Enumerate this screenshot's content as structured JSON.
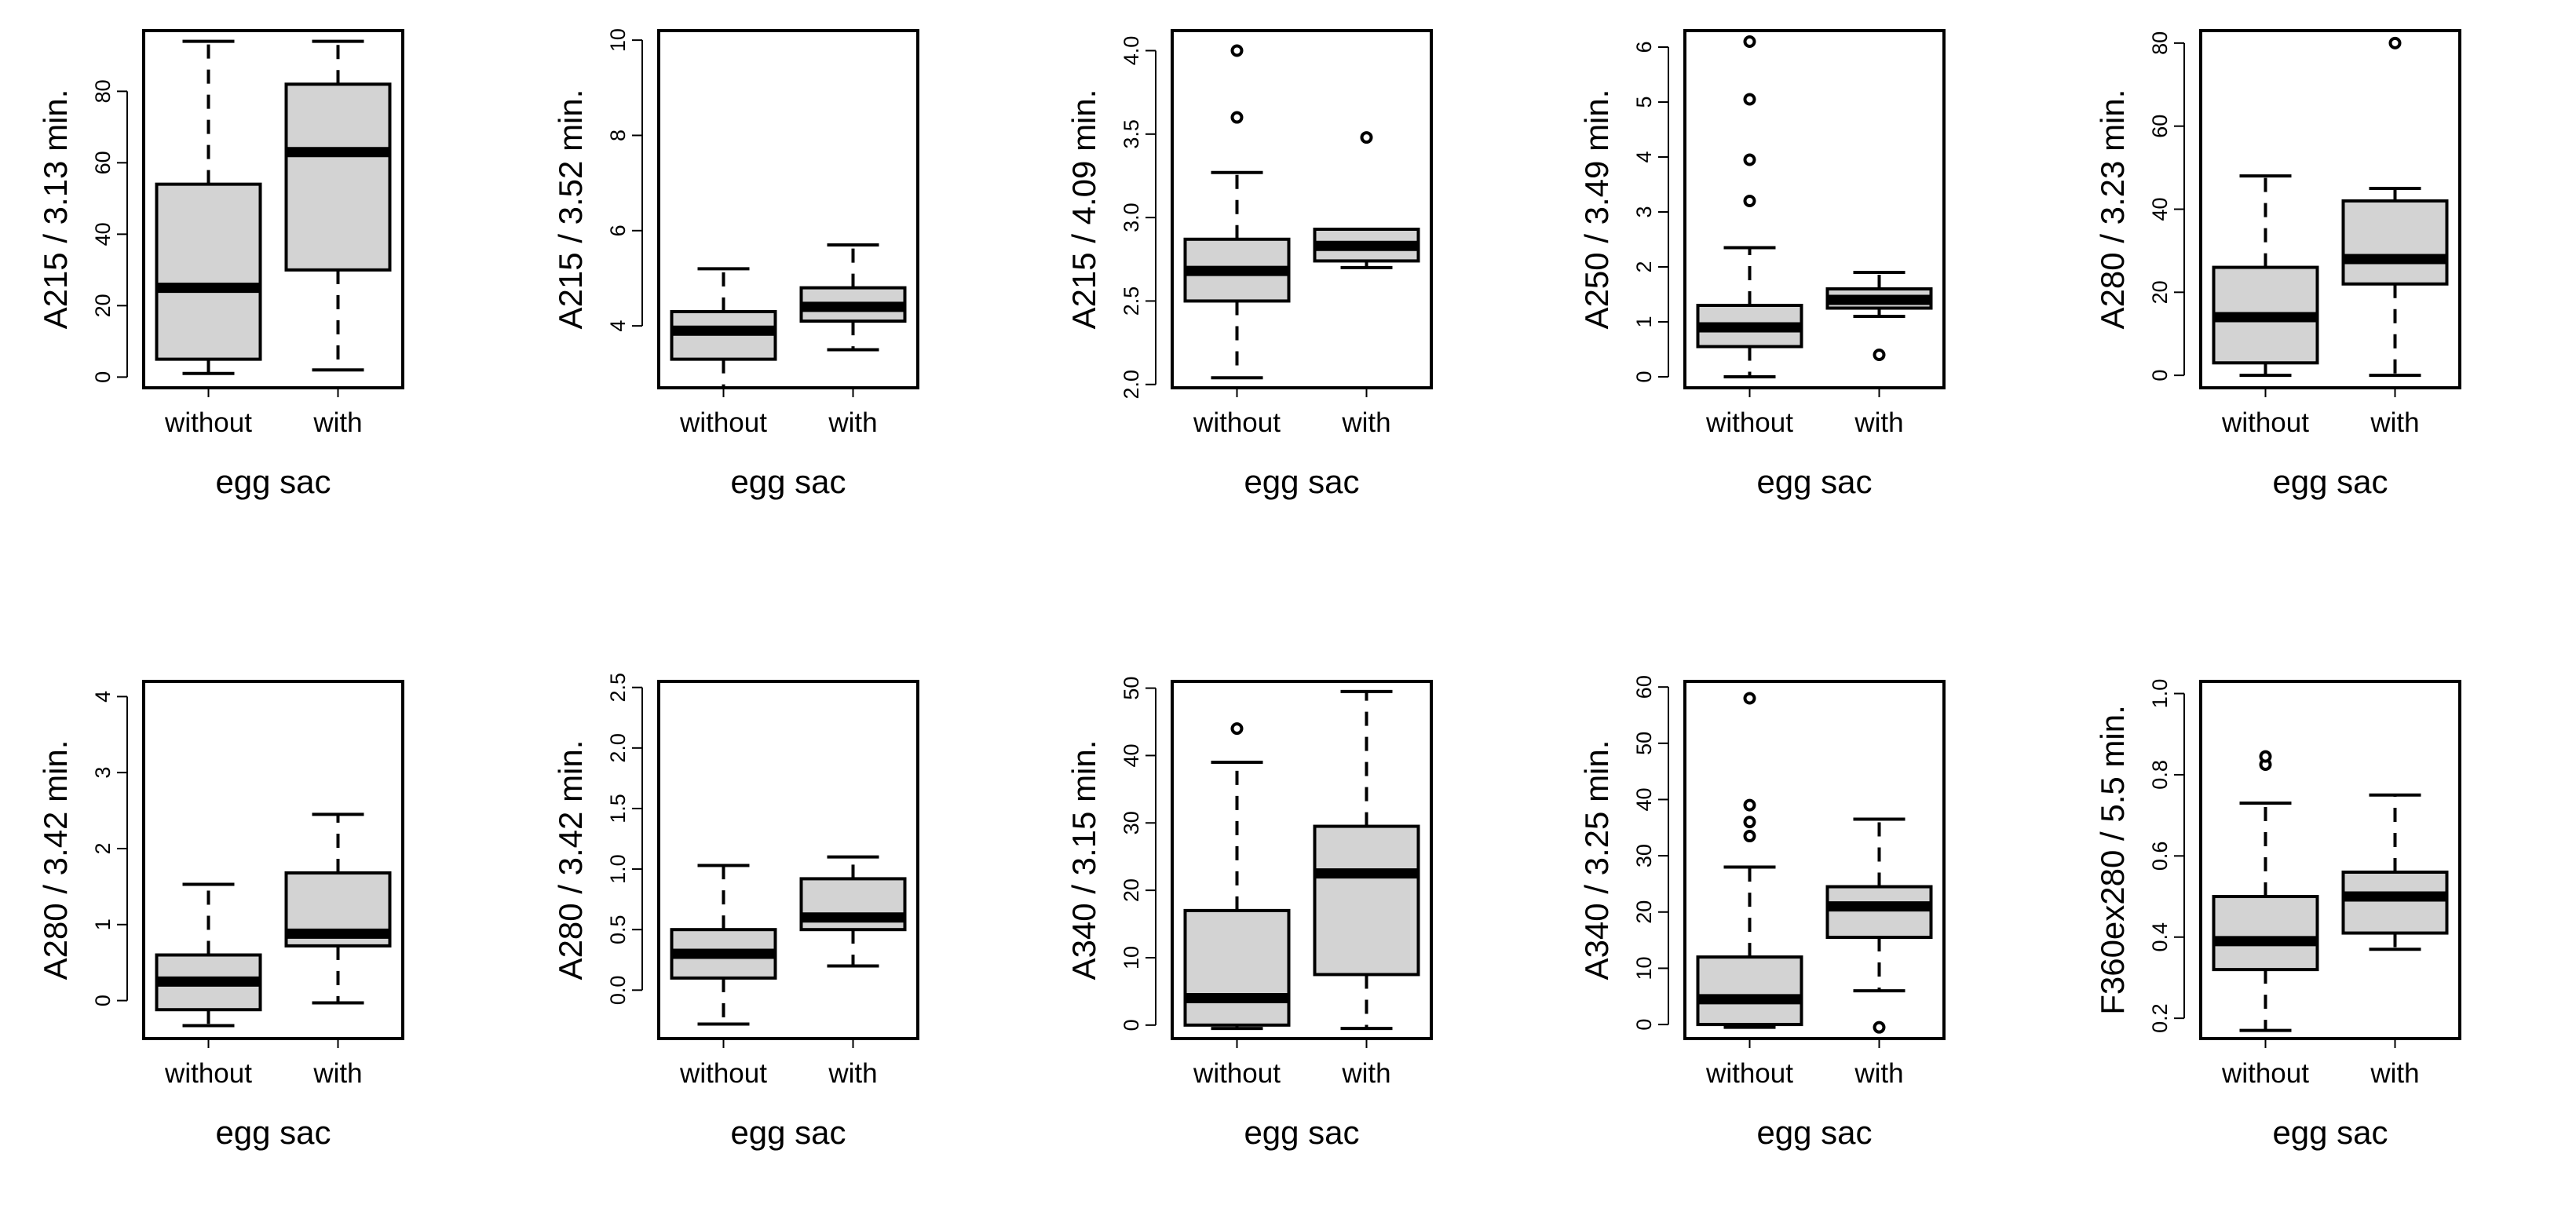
{
  "chart_data": [
    {
      "type": "box",
      "ylabel": "A215 / 3.13 min.",
      "xlabel": "egg sac",
      "categories": [
        "without",
        "with"
      ],
      "ylim": [
        -3,
        97
      ],
      "yticks": [
        0,
        20,
        40,
        60,
        80
      ],
      "boxes": [
        {
          "whisker_low": 1,
          "q1": 5,
          "median": 25,
          "q3": 54,
          "whisker_high": 94,
          "outliers": []
        },
        {
          "whisker_low": 2,
          "q1": 30,
          "median": 63,
          "q3": 82,
          "whisker_high": 94,
          "outliers": []
        }
      ]
    },
    {
      "type": "box",
      "ylabel": "A215 / 3.52 min.",
      "xlabel": "egg sac",
      "categories": [
        "without",
        "with"
      ],
      "ylim": [
        2.7,
        10.2
      ],
      "yticks": [
        4,
        6,
        8,
        10
      ],
      "boxes": [
        {
          "whisker_low": 2.7,
          "q1": 3.3,
          "median": 3.9,
          "q3": 4.3,
          "whisker_high": 5.2,
          "outliers": []
        },
        {
          "whisker_low": 3.5,
          "q1": 4.1,
          "median": 4.4,
          "q3": 4.8,
          "whisker_high": 5.7,
          "outliers": []
        }
      ]
    },
    {
      "type": "box",
      "ylabel": "A215 / 4.09 min.",
      "xlabel": "egg sac",
      "categories": [
        "without",
        "with"
      ],
      "ylim": [
        1.98,
        4.12
      ],
      "yticks": [
        2.0,
        2.5,
        3.0,
        3.5,
        4.0
      ],
      "ytick_labels": [
        "2.0",
        "2.5",
        "3.0",
        "3.5",
        "4.0"
      ],
      "boxes": [
        {
          "whisker_low": 2.04,
          "q1": 2.5,
          "median": 2.68,
          "q3": 2.87,
          "whisker_high": 3.27,
          "outliers": [
            3.6,
            4.0
          ]
        },
        {
          "whisker_low": 2.7,
          "q1": 2.74,
          "median": 2.83,
          "q3": 2.93,
          "whisker_high": 2.93,
          "outliers": [
            3.48
          ]
        }
      ]
    },
    {
      "type": "box",
      "ylabel": "A250 / 3.49 min.",
      "xlabel": "egg sac",
      "categories": [
        "without",
        "with"
      ],
      "ylim": [
        -0.2,
        6.3
      ],
      "yticks": [
        0,
        1,
        2,
        3,
        4,
        5,
        6
      ],
      "boxes": [
        {
          "whisker_low": 0.0,
          "q1": 0.55,
          "median": 0.9,
          "q3": 1.3,
          "whisker_high": 2.35,
          "outliers": [
            3.2,
            3.95,
            5.05,
            6.1
          ]
        },
        {
          "whisker_low": 1.1,
          "q1": 1.25,
          "median": 1.4,
          "q3": 1.6,
          "whisker_high": 1.9,
          "outliers": [
            0.4
          ]
        }
      ]
    },
    {
      "type": "box",
      "ylabel": "A280 / 3.23 min.",
      "xlabel": "egg sac",
      "categories": [
        "without",
        "with"
      ],
      "ylim": [
        -3,
        83
      ],
      "yticks": [
        0,
        20,
        40,
        60,
        80
      ],
      "boxes": [
        {
          "whisker_low": 0,
          "q1": 3,
          "median": 14,
          "q3": 26,
          "whisker_high": 48,
          "outliers": []
        },
        {
          "whisker_low": 0,
          "q1": 22,
          "median": 28,
          "q3": 42,
          "whisker_high": 45,
          "outliers": [
            80
          ]
        }
      ]
    },
    {
      "type": "box",
      "ylabel": "A280 / 3.42 min.",
      "xlabel": "egg sac",
      "categories": [
        "without",
        "with"
      ],
      "ylim": [
        -0.5,
        4.2
      ],
      "yticks": [
        0,
        1,
        2,
        3,
        4
      ],
      "boxes": [
        {
          "whisker_low": -0.33,
          "q1": -0.12,
          "median": 0.25,
          "q3": 0.6,
          "whisker_high": 1.53,
          "outliers": []
        },
        {
          "whisker_low": -0.03,
          "q1": 0.72,
          "median": 0.88,
          "q3": 1.68,
          "whisker_high": 2.45,
          "outliers": []
        }
      ]
    },
    {
      "type": "box",
      "ylabel": "A280 / 3.42 min.",
      "xlabel": "egg sac",
      "categories": [
        "without",
        "with"
      ],
      "ylim": [
        -0.4,
        2.55
      ],
      "yticks": [
        0.0,
        0.5,
        1.0,
        1.5,
        2.0,
        2.5
      ],
      "ytick_labels": [
        "0.0",
        "0.5",
        "1.0",
        "1.5",
        "2.0",
        "2.5"
      ],
      "boxes": [
        {
          "whisker_low": -0.28,
          "q1": 0.1,
          "median": 0.3,
          "q3": 0.5,
          "whisker_high": 1.03,
          "outliers": []
        },
        {
          "whisker_low": 0.2,
          "q1": 0.5,
          "median": 0.6,
          "q3": 0.92,
          "whisker_high": 1.1,
          "outliers": []
        }
      ]
    },
    {
      "type": "box",
      "ylabel": "A340 / 3.15 min.",
      "xlabel": "egg sac",
      "categories": [
        "without",
        "with"
      ],
      "ylim": [
        -2,
        51
      ],
      "yticks": [
        0,
        10,
        20,
        30,
        40,
        50
      ],
      "boxes": [
        {
          "whisker_low": -0.5,
          "q1": 0,
          "median": 4,
          "q3": 17,
          "whisker_high": 39,
          "outliers": [
            44
          ]
        },
        {
          "whisker_low": -0.5,
          "q1": 7.5,
          "median": 22.5,
          "q3": 29.5,
          "whisker_high": 49.5,
          "outliers": []
        }
      ]
    },
    {
      "type": "box",
      "ylabel": "A340 / 3.25 min.",
      "xlabel": "egg sac",
      "categories": [
        "without",
        "with"
      ],
      "ylim": [
        -2.5,
        61
      ],
      "yticks": [
        0,
        10,
        20,
        30,
        40,
        50,
        60
      ],
      "boxes": [
        {
          "whisker_low": -0.5,
          "q1": 0,
          "median": 4.5,
          "q3": 12,
          "whisker_high": 28,
          "outliers": [
            33.5,
            36,
            39,
            58
          ]
        },
        {
          "whisker_low": 6,
          "q1": 15.5,
          "median": 21,
          "q3": 24.5,
          "whisker_high": 36.5,
          "outliers": [
            -0.5
          ]
        }
      ]
    },
    {
      "type": "box",
      "ylabel": "F360ex280 / 5.5 min.",
      "xlabel": "egg sac",
      "categories": [
        "without",
        "with"
      ],
      "ylim": [
        0.15,
        1.03
      ],
      "yticks": [
        0.2,
        0.4,
        0.6,
        0.8,
        1.0
      ],
      "ytick_labels": [
        "0.2",
        "0.4",
        "0.6",
        "0.8",
        "1.0"
      ],
      "boxes": [
        {
          "whisker_low": 0.17,
          "q1": 0.32,
          "median": 0.39,
          "q3": 0.5,
          "whisker_high": 0.73,
          "outliers": [
            0.825,
            0.845
          ]
        },
        {
          "whisker_low": 0.37,
          "q1": 0.41,
          "median": 0.5,
          "q3": 0.56,
          "whisker_high": 0.75,
          "outliers": []
        }
      ]
    }
  ],
  "style": {
    "box_fill": "#d3d3d3",
    "stroke": "#000000",
    "background": "#ffffff"
  }
}
